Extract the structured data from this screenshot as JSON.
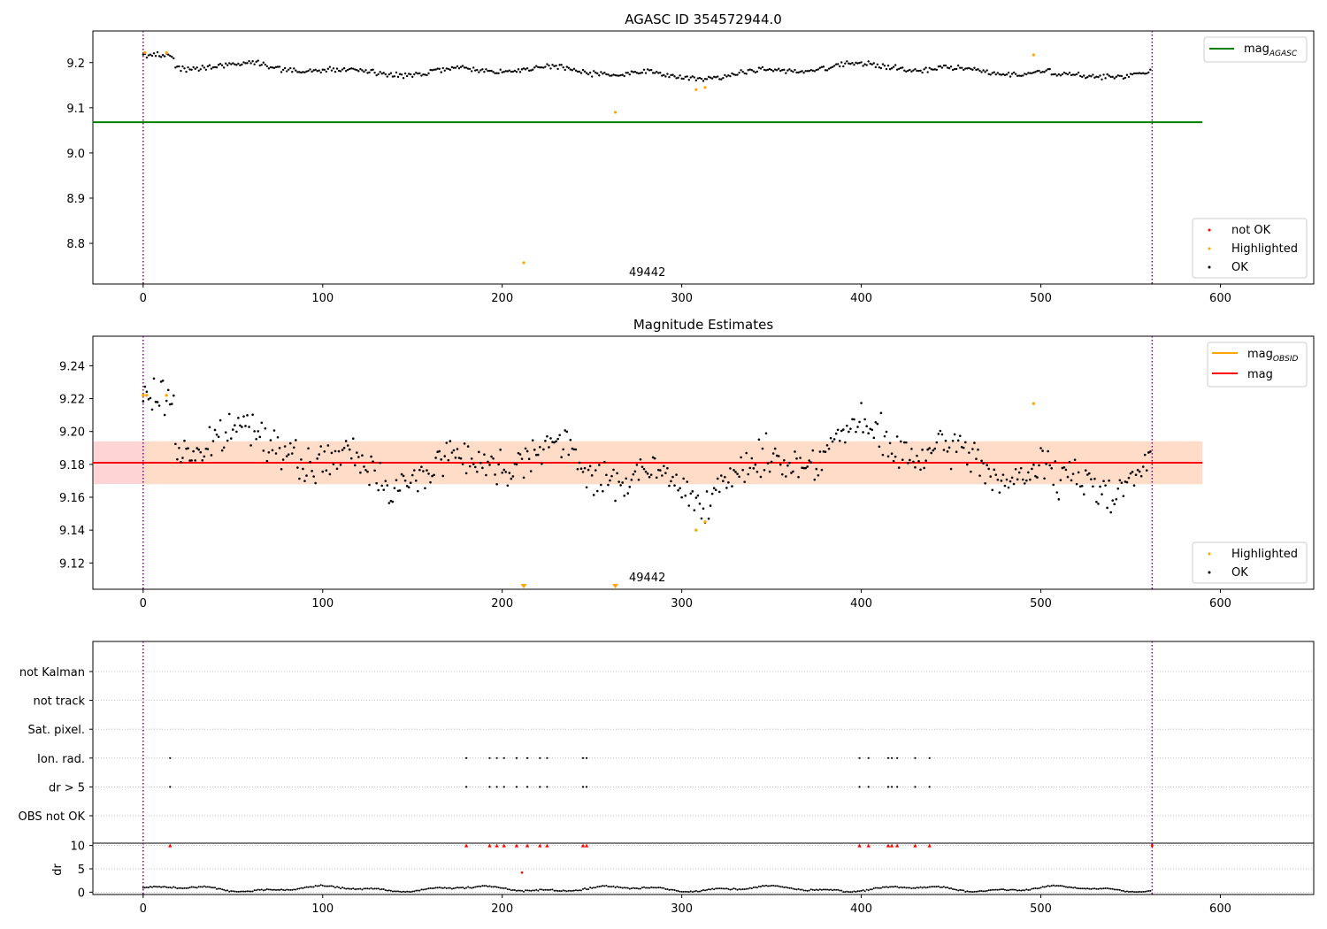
{
  "figure": {
    "obsid_label": "49442"
  },
  "chart_data": [
    {
      "type": "scatter",
      "title": "AGASC ID 354572944.0",
      "xlim": [
        -28,
        652
      ],
      "ylim": [
        8.71,
        9.27
      ],
      "xticks": [
        "0",
        "100",
        "200",
        "300",
        "400",
        "500",
        "600"
      ],
      "yticks": [
        "8.8",
        "8.9",
        "9.0",
        "9.1",
        "9.2"
      ],
      "mag_agasc": 9.068,
      "line_xrange": [
        0,
        590
      ],
      "obs_boundaries": [
        0,
        562
      ],
      "baseline": 9.182,
      "highlighted": [
        [
          1,
          9.222
        ],
        [
          13,
          9.222
        ],
        [
          212,
          8.757
        ],
        [
          263,
          9.09
        ],
        [
          308,
          9.14
        ],
        [
          313,
          9.145
        ],
        [
          496,
          9.217
        ]
      ],
      "legend_top": "mag_AGASC",
      "legend_bottom": [
        "not OK",
        "Highlighted",
        "OK"
      ],
      "colors": {
        "ok": "#000000",
        "highlighted": "#ffa500",
        "not_ok": "#ff0000",
        "mag_agasc": "#008000",
        "boundary": "#800080"
      }
    },
    {
      "type": "scatter",
      "title": "Magnitude Estimates",
      "xlim": [
        -28,
        652
      ],
      "ylim": [
        9.104,
        9.258
      ],
      "xticks": [
        "0",
        "100",
        "200",
        "300",
        "400",
        "500",
        "600"
      ],
      "yticks": [
        "9.12",
        "9.14",
        "9.16",
        "9.18",
        "9.20",
        "9.22",
        "9.24"
      ],
      "mag": 9.181,
      "mag_band": [
        9.168,
        9.194
      ],
      "line_xrange": [
        0,
        590
      ],
      "band_xrange": [
        -28,
        590
      ],
      "obs_boundaries": [
        0,
        562
      ],
      "highlighted": [
        [
          0,
          9.222
        ],
        [
          2,
          9.222
        ],
        [
          13,
          9.222
        ],
        [
          308,
          9.14
        ],
        [
          313,
          9.145
        ],
        [
          496,
          9.217
        ]
      ],
      "out_of_range_markers": [
        212,
        263
      ],
      "legend_top": [
        "mag_OBSID",
        "mag"
      ],
      "legend_bottom": [
        "Highlighted",
        "OK"
      ],
      "colors": {
        "ok": "#000000",
        "highlighted": "#ffa500",
        "mag_obsid": "#ffa500",
        "mag": "#ff0000",
        "band_outer": "#ffd4d4",
        "band_inner": "#ffdcc8",
        "boundary": "#800080"
      }
    },
    {
      "type": "scatter",
      "title": "",
      "xlim": [
        -28,
        652
      ],
      "xticks": [
        "0",
        "100",
        "200",
        "300",
        "400",
        "500",
        "600"
      ],
      "flag_rows": [
        "not Kalman",
        "not track",
        "Sat. pixel.",
        "Ion. rad.",
        "dr > 5",
        "OBS not OK"
      ],
      "flag_x": [
        15,
        180,
        193,
        197,
        201,
        208,
        214,
        221,
        225,
        245,
        247,
        399,
        404,
        415,
        417,
        420,
        430,
        438
      ],
      "dr_ylabel": "dr",
      "dr_yticks": [
        "0",
        "5",
        "10"
      ],
      "dr_ylim": [
        -0.5,
        10.5
      ],
      "dr_cap": 10,
      "dr_outlier": [
        211,
        4.2
      ],
      "obs_boundaries": [
        0,
        562
      ],
      "colors": {
        "ok": "#000000",
        "not_ok": "#ff0000",
        "boundary": "#800080",
        "grid": "#b0b0b0"
      }
    }
  ]
}
